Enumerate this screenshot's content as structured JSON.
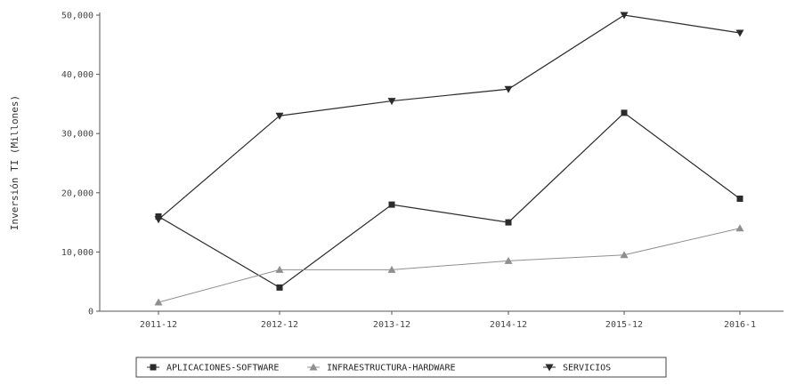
{
  "chart_data": {
    "type": "line",
    "title": "",
    "xlabel": "",
    "ylabel": "Inversión TI (Millones)",
    "categories": [
      "2011-12",
      "2012-12",
      "2013-12",
      "2014-12",
      "2015-12",
      "2016-1"
    ],
    "ylim": [
      0,
      50000
    ],
    "yticks": [
      0,
      10000,
      20000,
      30000,
      40000,
      50000
    ],
    "ytick_labels": [
      "0",
      "10,000",
      "20,000",
      "30,000",
      "40,000",
      "50,000"
    ],
    "legend_position": "bottom",
    "grid": false,
    "series": [
      {
        "name": "APLICACIONES-SOFTWARE",
        "marker": "square",
        "color": "#2b2b2b",
        "values": [
          16000,
          4000,
          18000,
          15000,
          33500,
          19000
        ]
      },
      {
        "name": "INFRAESTRUCTURA-HARDWARE",
        "marker": "triangle-up",
        "color": "#8f8f8f",
        "values": [
          1500,
          7000,
          7000,
          8500,
          9500,
          14000
        ]
      },
      {
        "name": "SERVICIOS",
        "marker": "triangle-down",
        "color": "#2b2b2b",
        "values": [
          15500,
          33000,
          35500,
          37500,
          50000,
          47000
        ]
      }
    ]
  }
}
